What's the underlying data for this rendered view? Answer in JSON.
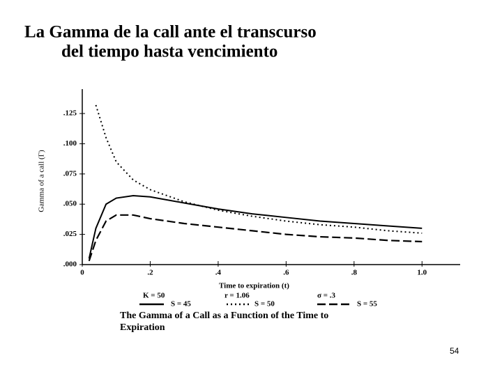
{
  "slide": {
    "title": [
      "La Gamma de la call ante el transcurso",
      "del tiempo hasta vencimiento"
    ],
    "page_number": "54"
  },
  "chart_data": {
    "type": "line",
    "x_label": "Time to expiration (t)",
    "y_label": "Gamma of a call (Γ)",
    "parameters": [
      "K = 50",
      "r = 1.06",
      "σ = .3"
    ],
    "caption": [
      "The Gamma of a Call as a Function of the Time to",
      "Expiration"
    ],
    "x": [
      0.02,
      0.04,
      0.07,
      0.1,
      0.15,
      0.2,
      0.3,
      0.4,
      0.5,
      0.6,
      0.7,
      0.8,
      0.9,
      1.0
    ],
    "series": [
      {
        "name": "S = 45",
        "color": "#000000",
        "dash": "solid",
        "values": [
          0.005,
          0.03,
          0.05,
          0.055,
          0.057,
          0.056,
          0.051,
          0.046,
          0.042,
          0.039,
          0.036,
          0.034,
          0.032,
          0.03
        ]
      },
      {
        "name": "S = 50",
        "color": "#000000",
        "dash": "dotted",
        "values": [
          null,
          0.132,
          0.105,
          0.085,
          0.07,
          0.062,
          0.052,
          0.045,
          0.04,
          0.036,
          0.033,
          0.031,
          0.028,
          0.026
        ]
      },
      {
        "name": "S = 55",
        "color": "#000000",
        "dash": "dashed",
        "values": [
          0.003,
          0.02,
          0.036,
          0.041,
          0.041,
          0.038,
          0.034,
          0.031,
          0.028,
          0.025,
          0.023,
          0.022,
          0.02,
          0.019
        ]
      }
    ],
    "xlim": [
      0,
      1.1
    ],
    "ylim": [
      0,
      0.14
    ],
    "xticks": [
      0,
      {
        "value": 0.2,
        "label": ".2"
      },
      {
        "value": 0.4,
        "label": ".4"
      },
      {
        "value": 0.6,
        "label": ".6"
      },
      {
        "value": 0.8,
        "label": ".8"
      },
      {
        "value": 1.0,
        "label": "1.0"
      }
    ],
    "yticks": [
      {
        "value": 0,
        "label": ".000"
      },
      {
        "value": 0.025,
        "label": ".025"
      },
      {
        "value": 0.05,
        "label": ".050"
      },
      {
        "value": 0.075,
        "label": ".075"
      },
      {
        "value": 0.1,
        "label": ".100"
      },
      {
        "value": 0.125,
        "label": ".125"
      }
    ],
    "grid": false
  }
}
